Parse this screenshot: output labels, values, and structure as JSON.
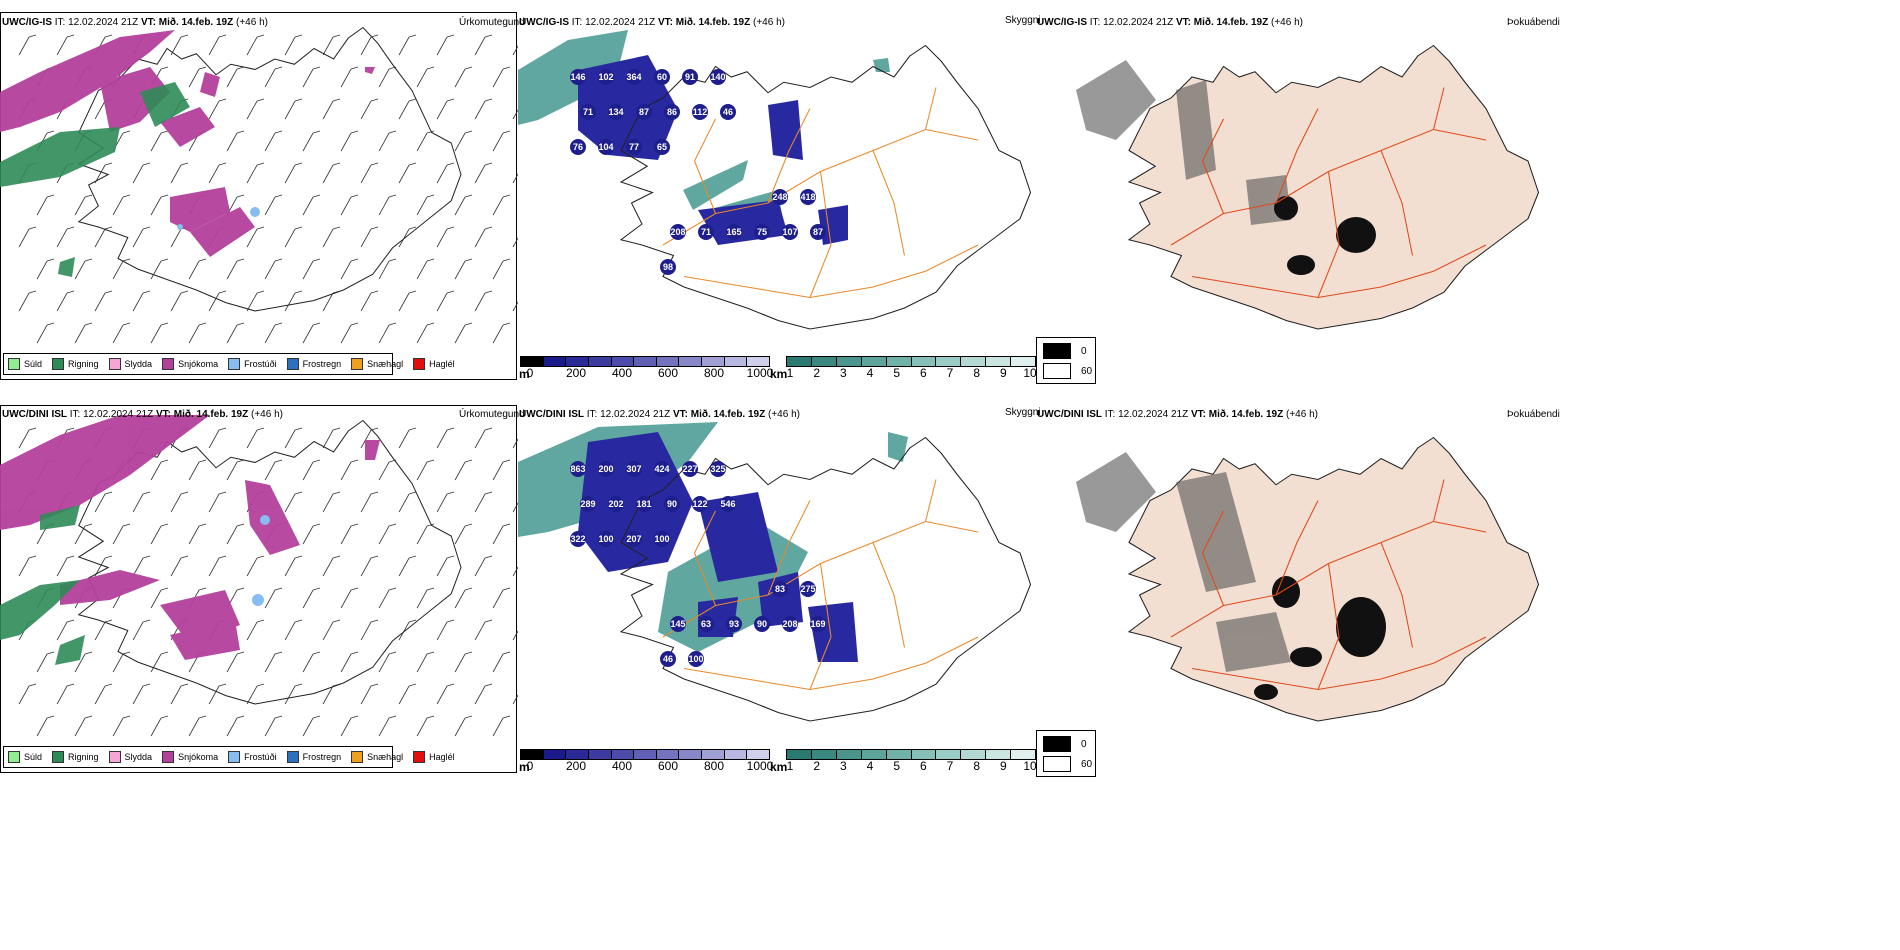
{
  "rows": [
    {
      "id": "row1",
      "model": "UWC/IG-IS",
      "it_label": "IT:",
      "it_value": "12.02.2024 21Z",
      "vt_label": "VT:",
      "vt_value": "Mið. 14.feb. 19Z",
      "lead": "(+46 h)",
      "panel_titles": [
        "Úrkomutegund",
        "Skyggni",
        "Þokuábendi"
      ],
      "cloud_labels": [
        "146",
        "102",
        "364",
        "60",
        "91",
        "140",
        "71",
        "134",
        "87",
        "86",
        "112",
        "46",
        "76",
        "104",
        "77",
        "65",
        "248",
        "418",
        "208",
        "71",
        "165",
        "75",
        "107",
        "87",
        "98"
      ]
    },
    {
      "id": "row2",
      "model": "UWC/DINI ISL",
      "it_label": "IT:",
      "it_value": "12.02.2024 21Z",
      "vt_label": "VT:",
      "vt_value": "Mið. 14.feb. 19Z",
      "lead": "(+46 h)",
      "panel_titles": [
        "Úrkomutegund",
        "Skyggni",
        "Þokuábendi"
      ],
      "cloud_labels": [
        "863",
        "200",
        "307",
        "424",
        "227",
        "325",
        "289",
        "202",
        "181",
        "90",
        "122",
        "546",
        "322",
        "100",
        "207",
        "100",
        "83",
        "275",
        "145",
        "63",
        "93",
        "90",
        "208",
        "169",
        "46",
        "100"
      ]
    }
  ],
  "precip_legend": [
    {
      "label": "Súld",
      "color": "#90ee90"
    },
    {
      "label": "Rigning",
      "color": "#2e8b57"
    },
    {
      "label": "Slydda",
      "color": "#f4a6d7"
    },
    {
      "label": "Snjókoma",
      "color": "#b5409c"
    },
    {
      "label": "Frostúði",
      "color": "#87bdf0"
    },
    {
      "label": "Frostregn",
      "color": "#2f6fbf"
    },
    {
      "label": "Snæhagl",
      "color": "#f0a020"
    },
    {
      "label": "Haglél",
      "color": "#e01010"
    }
  ],
  "cloudbase_bar": {
    "unit": "m",
    "ticks": [
      "0",
      "200",
      "400",
      "600",
      "800",
      "1000"
    ],
    "colors": [
      "#000000",
      "#1a1a8a",
      "#2a2a96",
      "#3b3ba0",
      "#4c4caa",
      "#6060b4",
      "#7474be",
      "#8888c8",
      "#a0a0d4",
      "#b8b8e0",
      "#d0d0ec"
    ]
  },
  "visibility_bar": {
    "unit": "km",
    "ticks": [
      "1",
      "2",
      "3",
      "4",
      "5",
      "6",
      "7",
      "8",
      "9",
      "10"
    ],
    "colors": [
      "#2a7a72",
      "#3a8880",
      "#4a968e",
      "#5ca49c",
      "#70b2aa",
      "#86c0b8",
      "#9cccc6",
      "#b4d8d4",
      "#cae4e0",
      "#e0f0ee"
    ]
  },
  "fog_legend": [
    {
      "label": "0",
      "color": "#000000"
    },
    {
      "label": "60",
      "color": "#ffffff"
    }
  ]
}
